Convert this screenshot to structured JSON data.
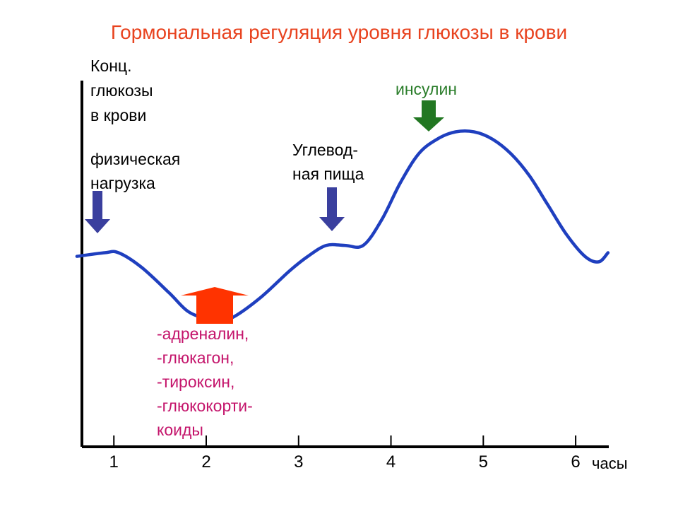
{
  "title": "Гормональная регуляция уровня глюкозы в крови",
  "colors": {
    "title": "#e8431f",
    "curve": "#1f3fbf",
    "blue_arrow": "#3a3f9e",
    "green_arrow": "#227722",
    "red_arrow": "#ff3300",
    "hormones_text": "#c4146b",
    "insulin_text": "#2a7d2a"
  },
  "icons": [
    "down-arrow-blue",
    "down-arrow-green",
    "up-arrow-red"
  ],
  "annotations": {
    "exercise": [
      "физическая",
      "нагрузка"
    ],
    "food": [
      "Углевод-",
      "ная пища"
    ],
    "insulin": "инсулин",
    "hormones": [
      "-адреналин,",
      "-глюкагон,",
      "-тироксин,",
      "-глюкокорти-",
      "коиды"
    ]
  },
  "chart_data": {
    "type": "line",
    "title": "Гормональная регуляция уровня глюкозы в крови",
    "ylabel": [
      "Конц.",
      "глюкозы",
      "в крови"
    ],
    "xlabel": "часы",
    "x_ticks": [
      "1",
      "2",
      "3",
      "4",
      "5",
      "6"
    ],
    "xlim": [
      0.6,
      6.4
    ],
    "ylim": [
      0,
      10
    ],
    "grid": false,
    "series": [
      {
        "x": [
          0.6,
          0.9,
          1.05,
          1.3,
          1.6,
          1.8,
          2.0,
          2.15,
          2.3,
          2.6,
          2.9,
          3.1,
          3.3,
          3.5,
          3.7,
          3.9,
          4.1,
          4.3,
          4.5,
          4.7,
          4.9,
          5.1,
          5.3,
          5.5,
          5.7,
          5.9,
          6.1,
          6.25,
          6.35
        ],
        "y": [
          5.2,
          5.3,
          5.3,
          4.9,
          4.2,
          3.7,
          3.5,
          3.45,
          3.55,
          4.1,
          4.8,
          5.2,
          5.5,
          5.5,
          5.5,
          6.2,
          7.2,
          8.0,
          8.4,
          8.6,
          8.6,
          8.4,
          8.0,
          7.4,
          6.6,
          5.8,
          5.2,
          5.05,
          5.3
        ]
      }
    ]
  }
}
